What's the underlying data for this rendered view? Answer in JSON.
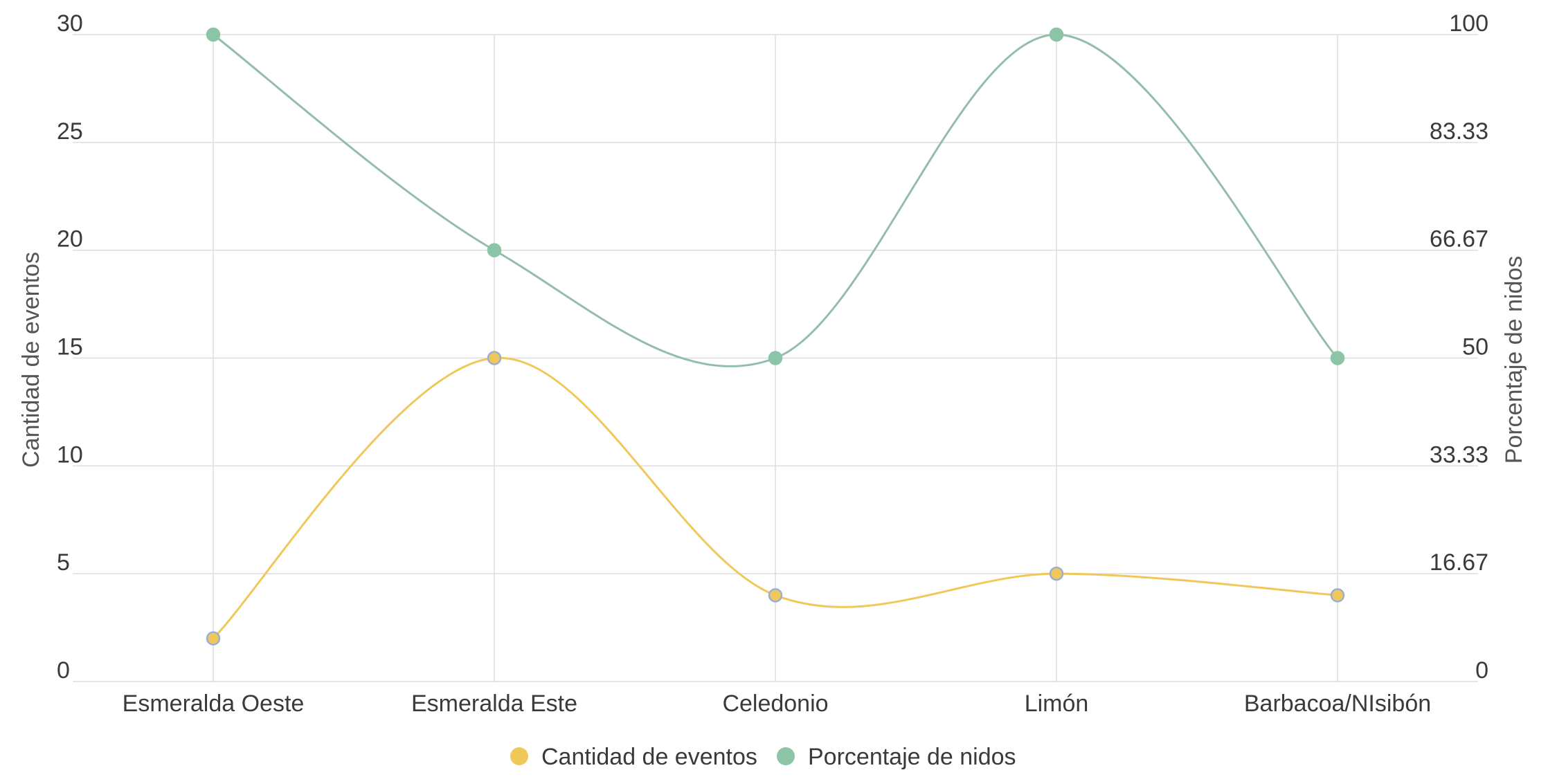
{
  "chart_data": {
    "type": "line",
    "categories": [
      "Esmeralda Oeste",
      "Esmeralda Este",
      "Celedonio",
      "Limón",
      "Barbacoa/NIsibón"
    ],
    "series": [
      {
        "name": "Cantidad de eventos",
        "axis": "left",
        "values": [
          2,
          15,
          4,
          5,
          4
        ],
        "color": "#f0c85a"
      },
      {
        "name": "Porcentaje de nidos",
        "axis": "right",
        "values": [
          100,
          66.67,
          50,
          100,
          50
        ],
        "color": "#8cc4a8"
      }
    ],
    "ylabel": "Cantidad de eventos",
    "y2label": "Porcentaje de nidos",
    "ylim": [
      0,
      30
    ],
    "y2lim": [
      0,
      100
    ],
    "yticks": [
      "0",
      "5",
      "10",
      "15",
      "20",
      "25",
      "30"
    ],
    "y2ticks": [
      "0",
      "16.67",
      "33.33",
      "50",
      "66.67",
      "83.33",
      "100"
    ],
    "grid": true,
    "legend_position": "bottom",
    "smooth": true,
    "marker_outline_color": "#9aaed8",
    "grid_color": "#dddddd"
  }
}
